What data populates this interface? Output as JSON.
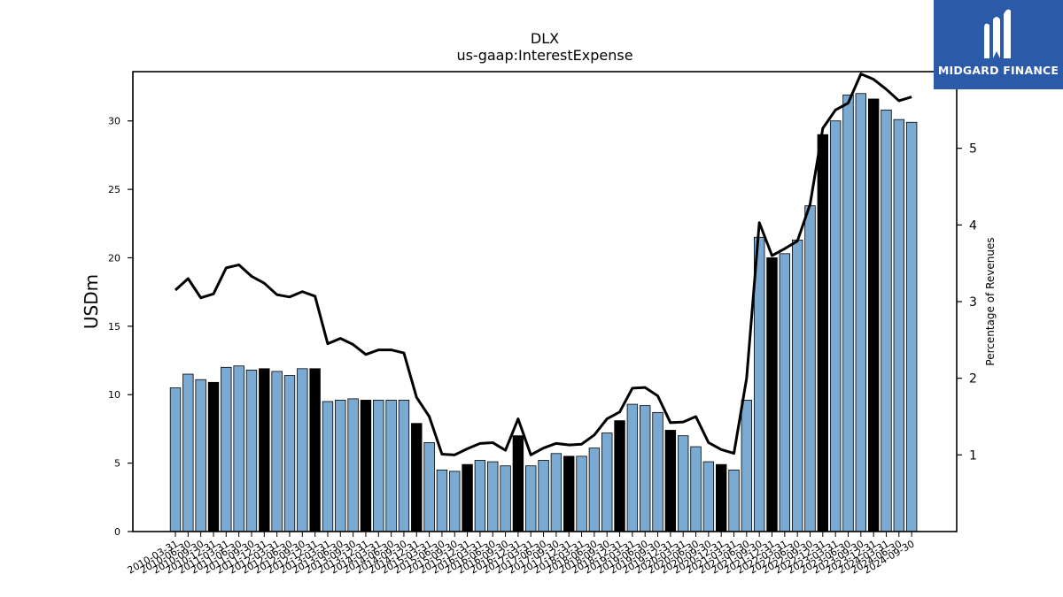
{
  "brand": {
    "name": "MIDGARD FINANCE",
    "color": "#2b5aa8"
  },
  "chart_data": {
    "type": "bar",
    "title": "DLX",
    "subtitle": "us-gaap:InterestExpense",
    "ylabel": "USDm",
    "y2label": "Percentage of Revenues",
    "ylim": [
      0,
      33.6
    ],
    "y2lim": [
      0,
      6.0
    ],
    "yticks": [
      0,
      5,
      10,
      15,
      20,
      25,
      30
    ],
    "y2ticks": [
      1,
      2,
      3,
      4,
      5,
      6
    ],
    "bar_color": "#7aaad2",
    "highlight_color": "#000000",
    "line_color": "#000000",
    "categories": [
      "2010-03-31",
      "2010-06-30",
      "2010-09-30",
      "2010-12-31",
      "2011-03-31",
      "2011-06-30",
      "2011-09-30",
      "2011-12-31",
      "2012-03-31",
      "2012-06-30",
      "2012-09-30",
      "2012-12-31",
      "2013-03-31",
      "2013-06-30",
      "2013-09-30",
      "2013-12-31",
      "2014-03-31",
      "2014-06-30",
      "2014-09-30",
      "2014-12-31",
      "2015-03-31",
      "2015-06-30",
      "2015-09-30",
      "2015-12-31",
      "2016-03-31",
      "2016-06-30",
      "2016-09-30",
      "2016-12-31",
      "2017-03-31",
      "2017-06-30",
      "2017-09-30",
      "2017-12-31",
      "2018-03-31",
      "2018-06-30",
      "2018-09-30",
      "2018-12-31",
      "2019-03-31",
      "2019-06-30",
      "2019-09-30",
      "2019-12-31",
      "2020-03-31",
      "2020-06-30",
      "2020-09-30",
      "2020-12-31",
      "2021-03-31",
      "2021-06-30",
      "2021-09-30",
      "2021-12-31",
      "2022-03-31",
      "2022-06-30",
      "2022-09-30",
      "2022-12-31",
      "2023-03-31",
      "2023-06-30",
      "2023-09-30",
      "2023-12-31",
      "2024-03-31",
      "2024-06-30",
      "2024-09-30"
    ],
    "tick_labels": [
      "2010-03-31",
      "2010-06-30",
      "2010-09-30",
      "2010-12-31",
      "2011-03-31",
      "2011-06-30",
      "2011-09-30",
      "2011-12-31",
      "2012-03-31",
      "2012-06-30",
      "2012-09-30",
      "2012-12-31",
      "2013-03-31",
      "2013-06-30",
      "2013-09-30",
      "2013-12-31",
      "2014-03-31",
      "2014-06-30",
      "2014-09-30",
      "2014-12-31",
      "2015-03-31",
      "2015-06-30",
      "2015-09-30",
      "2015-12-31",
      "2016-03-31",
      "2016-06-30",
      "2016-09-30",
      "2016-12-31",
      "2017-03-31",
      "2017-06-30",
      "2017-09-30",
      "2017-12-31",
      "2018-03-31",
      "2018-06-30",
      "2018-09-30",
      "2018-12-31",
      "2019-03-31",
      "2019-06-30",
      "2019-09-30",
      "2019-12-31",
      "2020-03-31",
      "2020-06-30",
      "2020-09-30",
      "2020-12-31",
      "2021-03-31",
      "2021-06-30",
      "2021-09-30",
      "2021-12-31",
      "2022-03-31",
      "2022-06-30",
      "2022-09-30",
      "2022-12-31",
      "2023-03-31",
      "2023-06-30",
      "2023-09-30",
      "2023-12-31",
      "2024-03-31",
      "2024-06-30",
      "2024-09-30"
    ],
    "values": [
      10.5,
      11.5,
      11.1,
      10.9,
      12.0,
      12.1,
      11.8,
      11.9,
      11.7,
      11.4,
      11.9,
      11.9,
      9.5,
      9.6,
      9.7,
      9.6,
      9.6,
      9.6,
      9.6,
      7.9,
      6.5,
      4.5,
      4.4,
      4.9,
      5.2,
      5.1,
      4.8,
      7.0,
      4.8,
      5.2,
      5.7,
      5.5,
      5.5,
      6.1,
      7.2,
      8.1,
      9.3,
      9.2,
      8.7,
      7.4,
      7.0,
      6.2,
      5.1,
      4.9,
      4.5,
      9.6,
      21.5,
      20.0,
      20.3,
      21.3,
      23.8,
      29.0,
      30.0,
      31.9,
      32.0,
      31.6,
      30.8,
      30.1,
      29.9
    ],
    "highlight": [
      false,
      false,
      false,
      true,
      false,
      false,
      false,
      true,
      false,
      false,
      false,
      true,
      false,
      false,
      false,
      true,
      false,
      false,
      false,
      true,
      false,
      false,
      false,
      true,
      false,
      false,
      false,
      true,
      false,
      false,
      false,
      true,
      false,
      false,
      false,
      true,
      false,
      false,
      false,
      true,
      false,
      false,
      false,
      true,
      false,
      false,
      false,
      true,
      false,
      false,
      false,
      true,
      false,
      false,
      false,
      true,
      false,
      false,
      false
    ],
    "line_series": {
      "name": "Percentage of Revenues",
      "values": [
        3.15,
        3.3,
        3.05,
        3.1,
        3.44,
        3.48,
        3.33,
        3.24,
        3.09,
        3.06,
        3.13,
        3.07,
        2.45,
        2.52,
        2.44,
        2.31,
        2.37,
        2.37,
        2.33,
        1.75,
        1.5,
        1.01,
        1.0,
        1.08,
        1.15,
        1.16,
        1.06,
        1.47,
        1.0,
        1.09,
        1.15,
        1.13,
        1.14,
        1.26,
        1.47,
        1.56,
        1.87,
        1.88,
        1.77,
        1.42,
        1.43,
        1.5,
        1.16,
        1.07,
        1.02,
        2.0,
        4.03,
        3.6,
        3.69,
        3.79,
        4.27,
        5.26,
        5.5,
        5.59,
        5.97,
        5.9,
        5.77,
        5.62,
        5.67
      ]
    }
  }
}
